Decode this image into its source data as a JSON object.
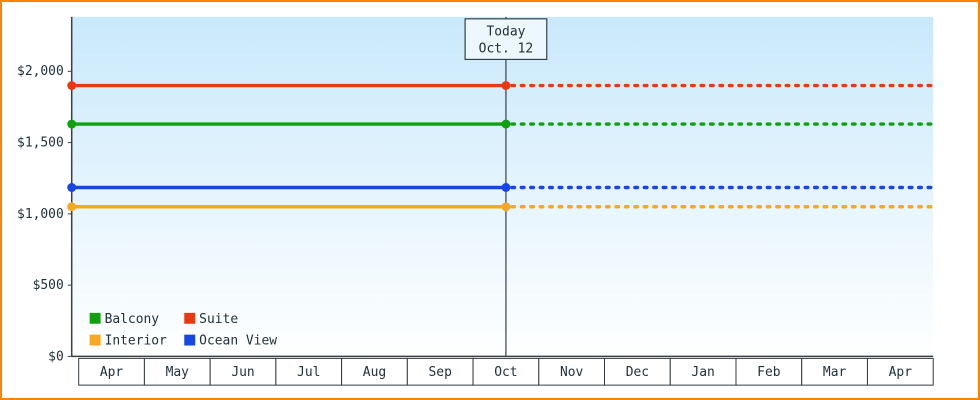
{
  "chart_data": {
    "type": "line",
    "title": "",
    "ylim": [
      0,
      2000
    ],
    "grid": false,
    "projection_style": "dotted-after-today",
    "y_ticks": [
      {
        "label": "$0",
        "value": 0
      },
      {
        "label": "$500",
        "value": 500
      },
      {
        "label": "$1,000",
        "value": 1000
      },
      {
        "label": "$1,500",
        "value": 1500
      },
      {
        "label": "$2,000",
        "value": 2000
      }
    ],
    "x_categories": [
      "Apr",
      "May",
      "Jun",
      "Jul",
      "Aug",
      "Sep",
      "Oct",
      "Nov",
      "Dec",
      "Jan",
      "Feb",
      "Mar",
      "Apr"
    ],
    "today_marker": {
      "line1": "Today",
      "line2": "Oct. 12",
      "category_index": 6
    },
    "series": [
      {
        "name": "Suite",
        "color": "#e83a12",
        "value": 1900
      },
      {
        "name": "Balcony",
        "color": "#10a010",
        "value": 1630
      },
      {
        "name": "Ocean View",
        "color": "#1747e0",
        "value": 1185
      },
      {
        "name": "Interior",
        "color": "#f6a821",
        "value": 1050
      }
    ],
    "legend": {
      "position": "bottom-left",
      "items": [
        {
          "label": "Balcony",
          "color": "#10a010"
        },
        {
          "label": "Suite",
          "color": "#e83a12"
        },
        {
          "label": "Interior",
          "color": "#f6a821"
        },
        {
          "label": "Ocean View",
          "color": "#1747e0"
        }
      ]
    },
    "colors": {
      "plot_bg_top": "#c9e9fb",
      "plot_bg_bottom": "#ffffff",
      "axis": "#3a3f45",
      "text": "#22313a",
      "frame_border": "#ff8400"
    }
  }
}
